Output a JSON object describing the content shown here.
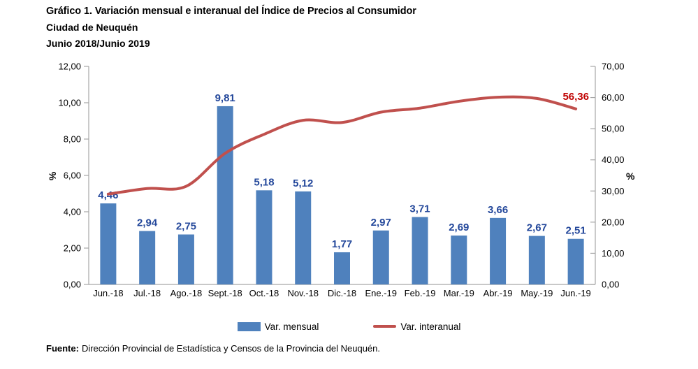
{
  "chart_data": {
    "type": "combo-bar-line",
    "title": "Gráfico 1. Variación mensual e interanual del Índice de Precios al Consumidor",
    "subtitle": "Ciudad de Neuquén",
    "period": "Junio 2018/Junio 2019",
    "categories": [
      "Jun.-18",
      "Jul.-18",
      "Ago.-18",
      "Sept.-18",
      "Oct.-18",
      "Nov.-18",
      "Dic.-18",
      "Ene.-19",
      "Feb.-19",
      "Mar.-19",
      "Abr.-19",
      "May.-19",
      "Jun.-19"
    ],
    "series": [
      {
        "name": "Var. mensual",
        "type": "bar",
        "axis": "left",
        "color": "#4F81BD",
        "values": [
          4.46,
          2.94,
          2.75,
          9.81,
          5.18,
          5.12,
          1.77,
          2.97,
          3.71,
          2.69,
          3.66,
          2.67,
          2.51
        ],
        "labels": [
          "4,46",
          "2,94",
          "2,75",
          "9,81",
          "5,18",
          "5,12",
          "1,77",
          "2,97",
          "3,71",
          "2,69",
          "3,66",
          "2,67",
          "2,51"
        ],
        "label_color": "#24489B"
      },
      {
        "name": "Var. interanual",
        "type": "line",
        "axis": "right",
        "color": "#C0504D",
        "values": [
          29.0,
          30.8,
          31.5,
          42.1,
          48.2,
          52.7,
          52.0,
          55.3,
          56.6,
          58.8,
          60.1,
          59.7,
          56.36
        ],
        "end_label": "56,36",
        "end_label_color": "#C00000"
      }
    ],
    "left_axis": {
      "label": "%",
      "min": 0,
      "max": 12,
      "step": 2,
      "tick_labels": [
        "0,00",
        "2,00",
        "4,00",
        "6,00",
        "8,00",
        "10,00",
        "12,00"
      ]
    },
    "right_axis": {
      "label": "%",
      "min": 0,
      "max": 70,
      "step": 10,
      "tick_labels": [
        "0,00",
        "10,00",
        "20,00",
        "30,00",
        "40,00",
        "50,00",
        "60,00",
        "70,00"
      ]
    },
    "legend_position": "bottom",
    "grid": false
  },
  "footer": {
    "source_label": "Fuente:",
    "source_text": "Dirección Provincial de Estadística y Censos de la Provincia del Neuquén."
  }
}
